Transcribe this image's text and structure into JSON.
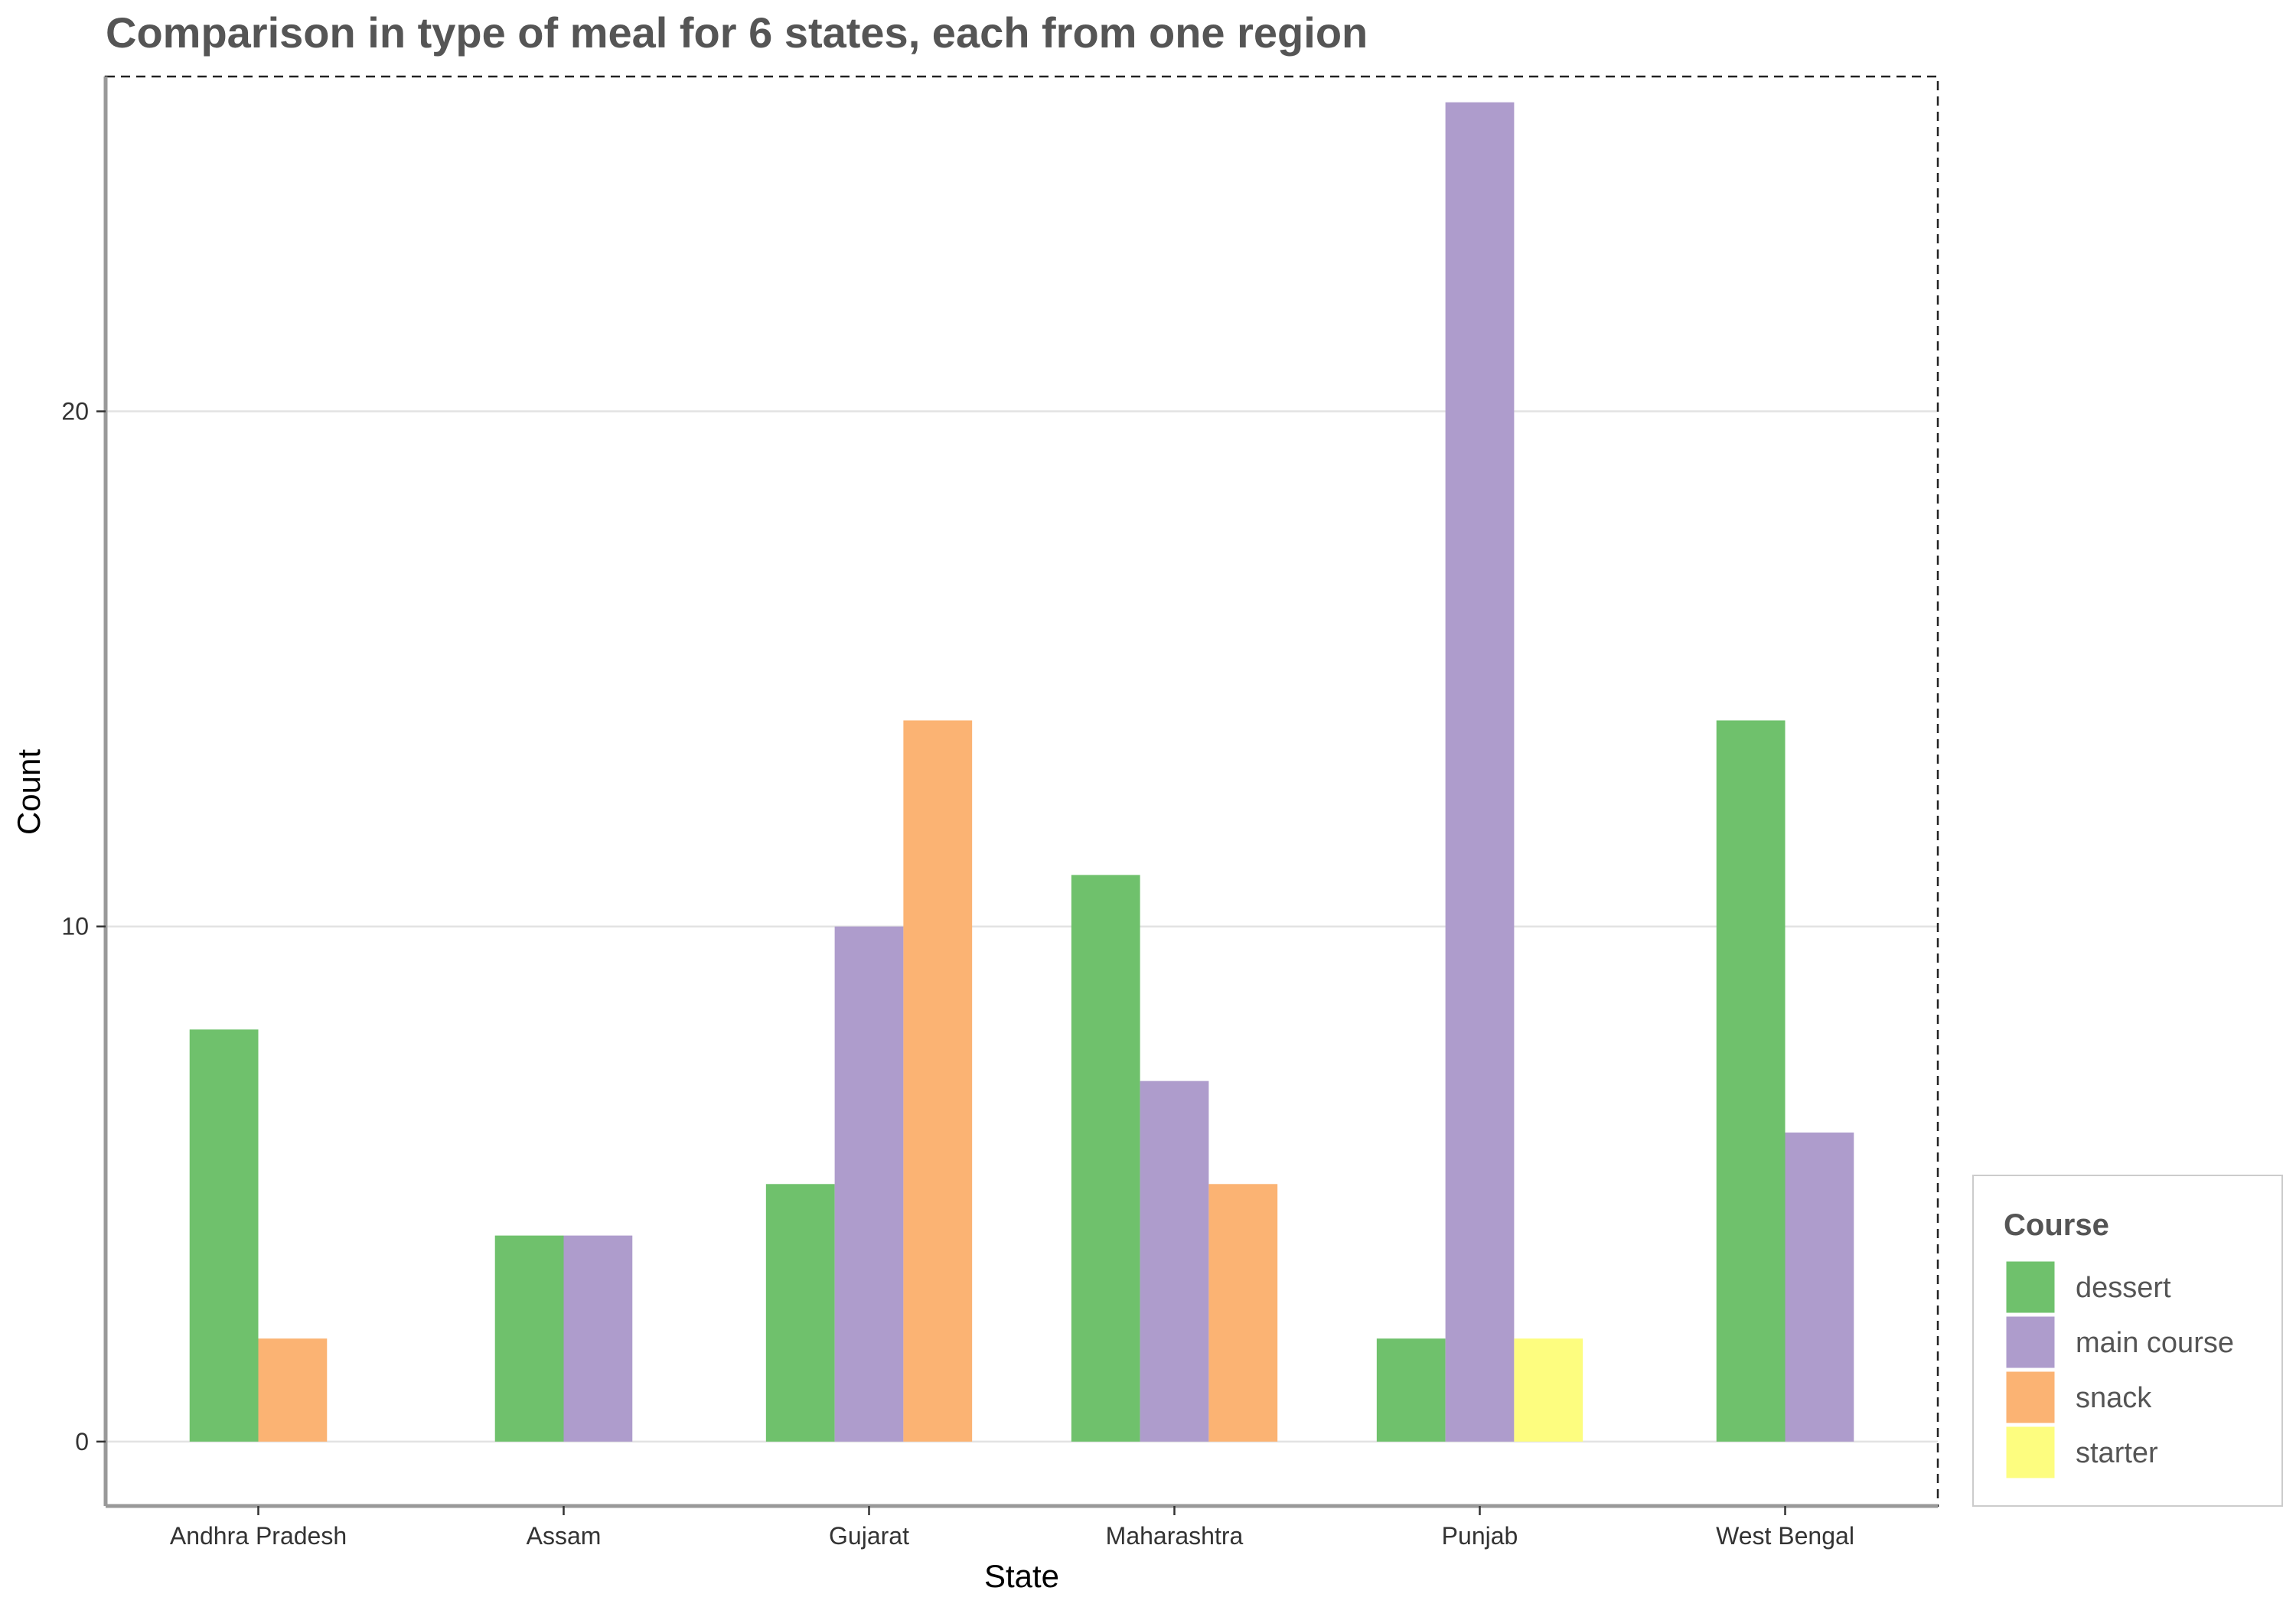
{
  "chart_data": {
    "type": "bar",
    "title": "Comparison in type of meal for 6 states, each from one region",
    "xlabel": "State",
    "ylabel": "Count",
    "ylim": [
      -1.25,
      26.5
    ],
    "yticks": [
      0,
      10,
      20
    ],
    "grid": true,
    "legend_position": "bottom-right",
    "legend_title": "Course",
    "categories": [
      "Andhra Pradesh",
      "Assam",
      "Gujarat",
      "Maharashtra",
      "Punjab",
      "West Bengal"
    ],
    "series": [
      {
        "name": "dessert",
        "color": "#6fc16c",
        "values": [
          8,
          4,
          5,
          11,
          2,
          14
        ]
      },
      {
        "name": "main course",
        "color": "#ae9ccc",
        "values": [
          null,
          4,
          10,
          7,
          26,
          6
        ]
      },
      {
        "name": "snack",
        "color": "#fbb373",
        "values": [
          2,
          null,
          14,
          5,
          null,
          null
        ]
      },
      {
        "name": "starter",
        "color": "#fdfd7f",
        "values": [
          null,
          null,
          null,
          null,
          2,
          null
        ]
      }
    ]
  }
}
